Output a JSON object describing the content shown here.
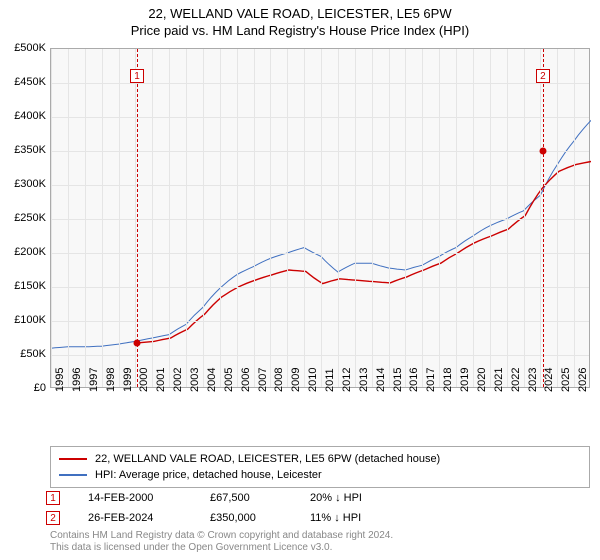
{
  "title_line1": "22, WELLAND VALE ROAD, LEICESTER, LE5 6PW",
  "title_line2": "Price paid vs. HM Land Registry's House Price Index (HPI)",
  "chart": {
    "type": "line",
    "background_color": "#f8f8f8",
    "grid_color": "#e5e5e5",
    "axis_color": "#aaaaaa",
    "font_family": "Arial",
    "title_fontsize": 13,
    "label_fontsize": 11,
    "ylim": [
      0,
      500000
    ],
    "ytick_step": 50000,
    "ytick_labels": [
      "£0",
      "£50K",
      "£100K",
      "£150K",
      "£200K",
      "£250K",
      "£300K",
      "£350K",
      "£400K",
      "£450K",
      "£500K"
    ],
    "x_years": [
      1995,
      1996,
      1997,
      1998,
      1999,
      2000,
      2001,
      2002,
      2003,
      2004,
      2005,
      2006,
      2007,
      2008,
      2009,
      2010,
      2011,
      2012,
      2013,
      2014,
      2015,
      2016,
      2017,
      2018,
      2019,
      2020,
      2021,
      2022,
      2023,
      2024,
      2025,
      2026
    ],
    "x_min_year": 1995,
    "x_max_year": 2027,
    "series": [
      {
        "name": "22, WELLAND VALE ROAD, LEICESTER, LE5 6PW (detached house)",
        "color": "#cc0000",
        "line_width": 1.4,
        "start_year": 2000.1,
        "data": [
          67500,
          70000,
          75000,
          88000,
          110000,
          135000,
          150000,
          160000,
          168000,
          175000,
          173000,
          155000,
          162000,
          160000,
          158000,
          156000,
          165000,
          175000,
          185000,
          200000,
          215000,
          225000,
          235000,
          255000,
          295000,
          320000,
          330000,
          335000,
          350000
        ]
      },
      {
        "name": "HPI: Average price, detached house, Leicester",
        "color": "#4070c0",
        "line_width": 1.0,
        "start_year": 1995,
        "data": [
          60000,
          62000,
          62000,
          63000,
          66000,
          70000,
          75000,
          80000,
          95000,
          120000,
          148000,
          168000,
          180000,
          192000,
          200000,
          208000,
          195000,
          172000,
          185000,
          185000,
          178000,
          175000,
          182000,
          195000,
          208000,
          225000,
          240000,
          250000,
          262000,
          285000,
          330000,
          365000,
          395000,
          404000,
          398000
        ]
      }
    ],
    "markers": [
      {
        "n": "1",
        "year": 2000.1,
        "color": "#cc0000"
      },
      {
        "n": "2",
        "year": 2024.15,
        "color": "#cc0000"
      }
    ],
    "sale_dots": [
      {
        "year": 2000.1,
        "value": 67500,
        "color": "#cc0000"
      },
      {
        "year": 2024.15,
        "value": 350000,
        "color": "#cc0000"
      }
    ]
  },
  "legend": {
    "items": [
      {
        "color": "#cc0000",
        "label": "22, WELLAND VALE ROAD, LEICESTER, LE5 6PW (detached house)"
      },
      {
        "color": "#4070c0",
        "label": "HPI: Average price, detached house, Leicester"
      }
    ]
  },
  "sales": [
    {
      "n": "1",
      "color": "#cc0000",
      "date": "14-FEB-2000",
      "price": "£67,500",
      "delta": "20% ↓ HPI"
    },
    {
      "n": "2",
      "color": "#cc0000",
      "date": "26-FEB-2024",
      "price": "£350,000",
      "delta": "11% ↓ HPI"
    }
  ],
  "footer_line1": "Contains HM Land Registry data © Crown copyright and database right 2024.",
  "footer_line2": "This data is licensed under the Open Government Licence v3.0."
}
